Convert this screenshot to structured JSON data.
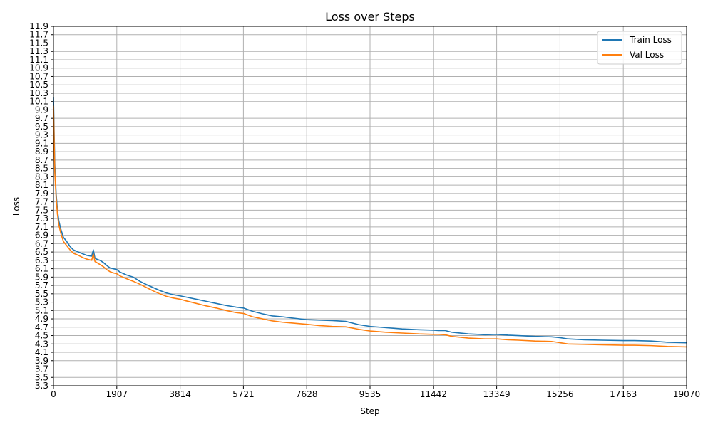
{
  "chart_data": {
    "type": "line",
    "title": "Loss over Steps",
    "xlabel": "Step",
    "ylabel": "Loss",
    "xlim": [
      0,
      19070
    ],
    "ylim": [
      3.3,
      11.9
    ],
    "xticks": [
      0,
      1907,
      3814,
      5721,
      7628,
      9535,
      11442,
      13349,
      15256,
      17163,
      19070
    ],
    "yticks": [
      3.3,
      3.5,
      3.7,
      3.9,
      4.1,
      4.3,
      4.5,
      4.7,
      4.9,
      5.1,
      5.3,
      5.5,
      5.7,
      5.9,
      6.1,
      6.3,
      6.5,
      6.7,
      6.9,
      7.1,
      7.3,
      7.5,
      7.7,
      7.9,
      8.1,
      8.3,
      8.5,
      8.7,
      8.9,
      9.1,
      9.3,
      9.5,
      9.7,
      9.9,
      10.1,
      10.3,
      10.5,
      10.7,
      10.9,
      11.1,
      11.3,
      11.5,
      11.7,
      11.9
    ],
    "grid": true,
    "legend_position": "top-right",
    "series": [
      {
        "name": "Train Loss",
        "color": "#1f77b4",
        "x": [
          0,
          40,
          80,
          120,
          160,
          220,
          300,
          400,
          500,
          600,
          750,
          900,
          1000,
          1150,
          1200,
          1250,
          1300,
          1400,
          1500,
          1600,
          1700,
          1800,
          1907,
          2000,
          2200,
          2400,
          2600,
          2800,
          3000,
          3200,
          3400,
          3600,
          3814,
          4000,
          4300,
          4600,
          4900,
          5200,
          5500,
          5721,
          6000,
          6300,
          6600,
          6900,
          7200,
          7628,
          8000,
          8400,
          8800,
          9200,
          9535,
          10000,
          10500,
          11000,
          11442,
          11600,
          11800,
          12000,
          12500,
          13000,
          13349,
          13700,
          14000,
          14500,
          15000,
          15256,
          15500,
          16000,
          16500,
          17163,
          17500,
          18000,
          18500,
          19070
        ],
        "y": [
          10.2,
          8.6,
          7.9,
          7.5,
          7.25,
          7.05,
          6.85,
          6.75,
          6.63,
          6.55,
          6.5,
          6.45,
          6.42,
          6.4,
          6.55,
          6.35,
          6.33,
          6.3,
          6.25,
          6.18,
          6.12,
          6.1,
          6.08,
          6.02,
          5.95,
          5.9,
          5.8,
          5.72,
          5.65,
          5.58,
          5.52,
          5.48,
          5.45,
          5.42,
          5.37,
          5.32,
          5.27,
          5.22,
          5.18,
          5.16,
          5.08,
          5.02,
          4.97,
          4.95,
          4.92,
          4.88,
          4.87,
          4.86,
          4.84,
          4.76,
          4.72,
          4.69,
          4.66,
          4.64,
          4.63,
          4.62,
          4.62,
          4.58,
          4.54,
          4.52,
          4.53,
          4.51,
          4.5,
          4.48,
          4.47,
          4.45,
          4.42,
          4.4,
          4.39,
          4.38,
          4.38,
          4.37,
          4.34,
          4.33
        ]
      },
      {
        "name": "Val Loss",
        "color": "#ff7f0e",
        "x": [
          0,
          40,
          80,
          120,
          160,
          220,
          300,
          400,
          500,
          600,
          750,
          900,
          1000,
          1150,
          1200,
          1250,
          1300,
          1400,
          1500,
          1600,
          1700,
          1800,
          1907,
          2000,
          2200,
          2400,
          2600,
          2800,
          3000,
          3200,
          3400,
          3600,
          3814,
          4000,
          4300,
          4600,
          4900,
          5200,
          5500,
          5721,
          6000,
          6300,
          6600,
          6900,
          7200,
          7628,
          8000,
          8400,
          8800,
          9200,
          9535,
          10000,
          10500,
          11000,
          11442,
          11600,
          11800,
          12000,
          12500,
          13000,
          13349,
          13700,
          14000,
          14500,
          15000,
          15256,
          15500,
          16000,
          16500,
          17163,
          17500,
          18000,
          18500,
          19070
        ],
        "y": [
          10.0,
          8.4,
          7.8,
          7.4,
          7.15,
          6.95,
          6.75,
          6.65,
          6.55,
          6.47,
          6.42,
          6.36,
          6.33,
          6.3,
          6.45,
          6.27,
          6.25,
          6.2,
          6.15,
          6.08,
          6.03,
          6.0,
          5.98,
          5.93,
          5.86,
          5.8,
          5.73,
          5.65,
          5.57,
          5.5,
          5.44,
          5.4,
          5.37,
          5.33,
          5.27,
          5.21,
          5.16,
          5.1,
          5.05,
          5.03,
          4.95,
          4.9,
          4.85,
          4.82,
          4.8,
          4.77,
          4.74,
          4.72,
          4.71,
          4.65,
          4.61,
          4.58,
          4.56,
          4.54,
          4.53,
          4.53,
          4.52,
          4.48,
          4.44,
          4.42,
          4.42,
          4.4,
          4.39,
          4.37,
          4.36,
          4.33,
          4.3,
          4.29,
          4.28,
          4.27,
          4.27,
          4.26,
          4.24,
          4.23
        ]
      }
    ]
  }
}
